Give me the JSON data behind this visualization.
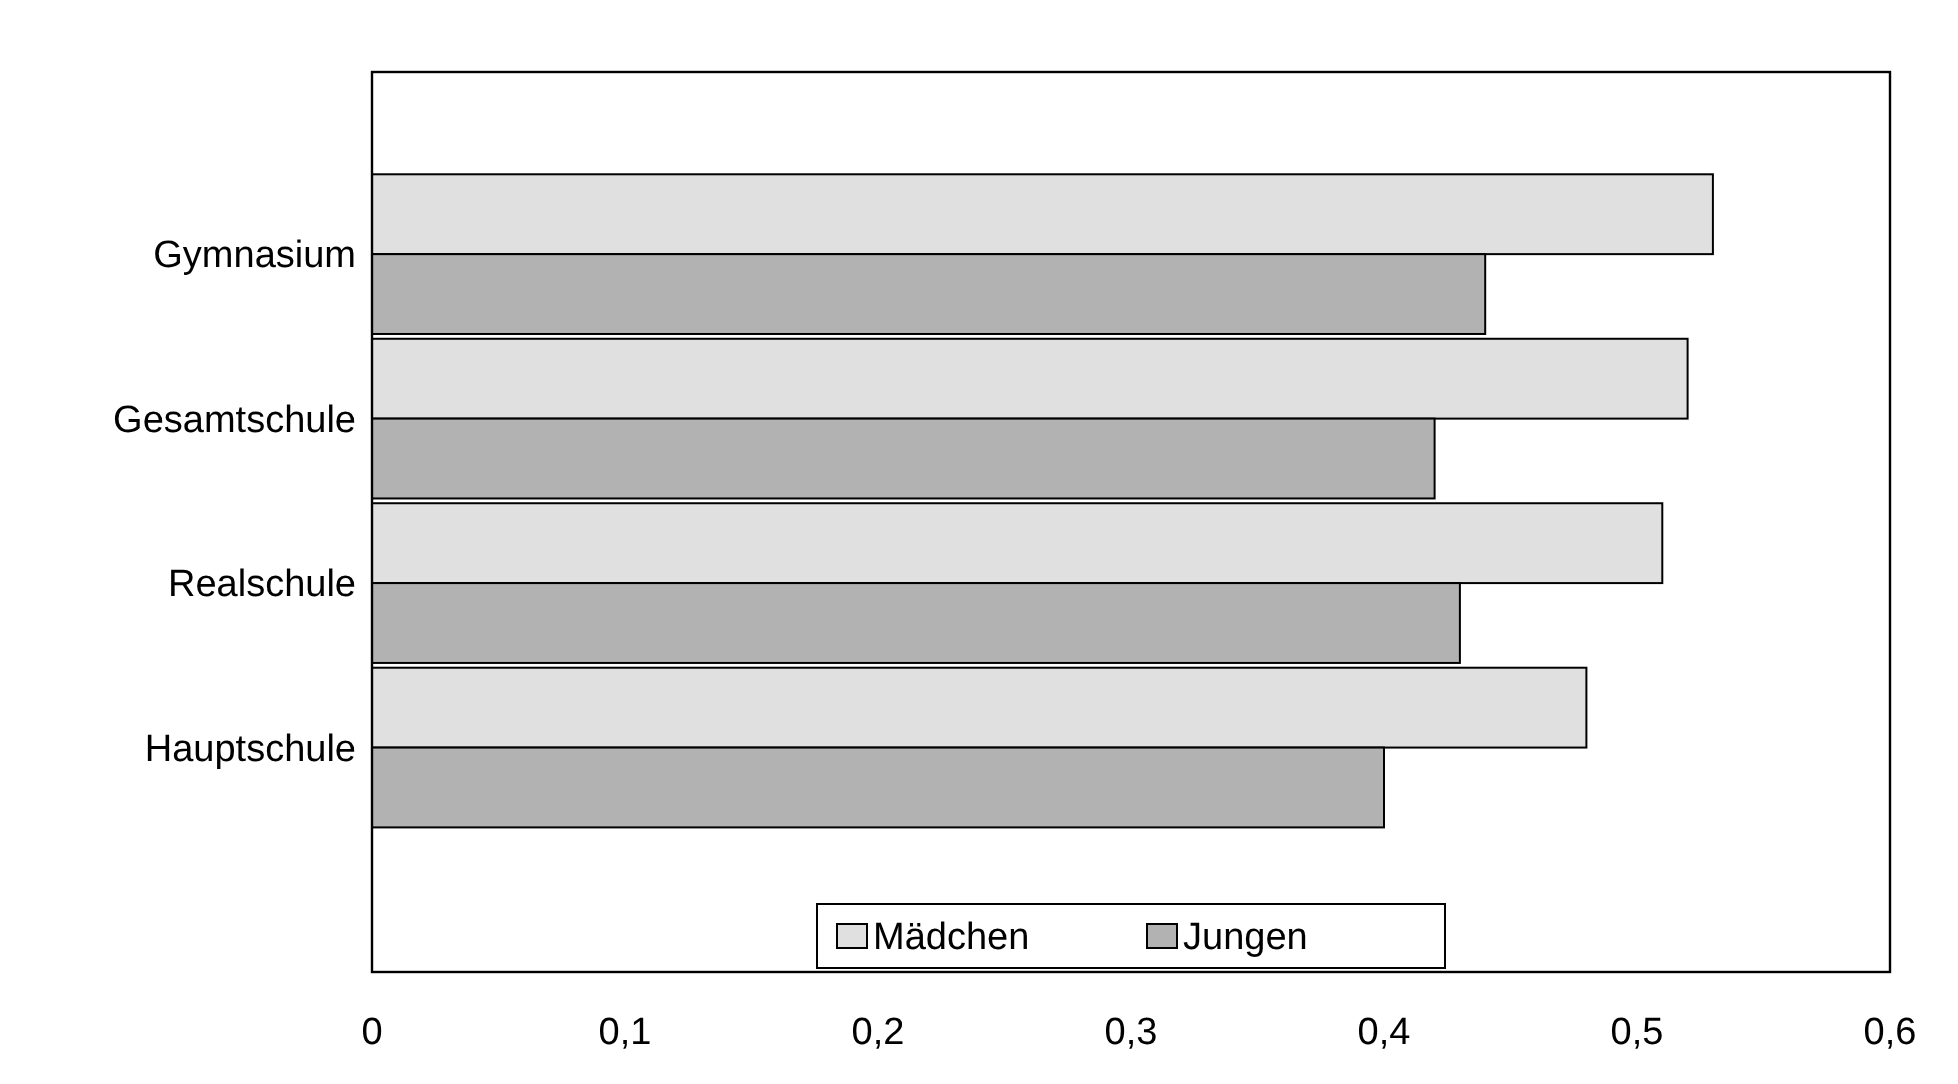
{
  "chart_data": {
    "type": "bar",
    "orientation": "horizontal",
    "categories": [
      "Gymnasium",
      "Gesamtschule",
      "Realschule",
      "Hauptschule"
    ],
    "series": [
      {
        "name": "Mädchen",
        "color": "#e0e0e0",
        "values": [
          0.53,
          0.52,
          0.51,
          0.48
        ]
      },
      {
        "name": "Jungen",
        "color": "#b2b2b2",
        "values": [
          0.44,
          0.42,
          0.43,
          0.4
        ]
      }
    ],
    "xlim": [
      0,
      0.6
    ],
    "xticks": [
      0,
      {
        "value": 0.1,
        "label": "0,1"
      },
      {
        "value": 0.2,
        "label": "0,2"
      },
      {
        "value": 0.3,
        "label": "0,3"
      },
      {
        "value": 0.4,
        "label": "0,4"
      },
      {
        "value": 0.5,
        "label": "0,5"
      },
      {
        "value": 0.6,
        "label": "0,6"
      }
    ],
    "legend": "bottom",
    "grid": false
  }
}
